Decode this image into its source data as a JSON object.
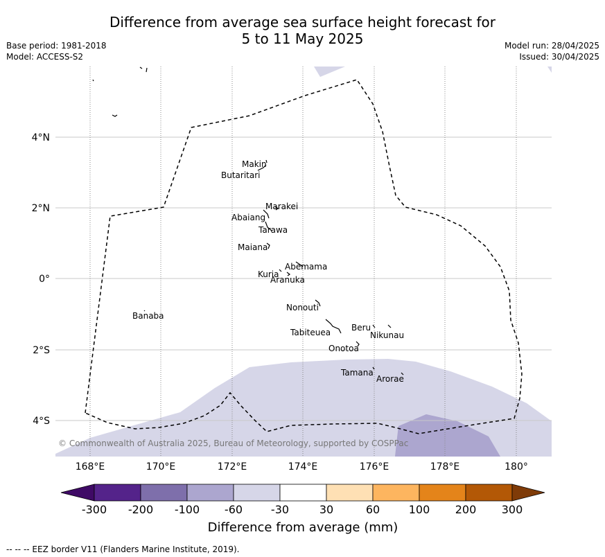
{
  "title_line1": "Difference from average sea surface height forecast for",
  "title_line2": "5 to 11 May 2025",
  "base_period": "Base period: 1981-2018",
  "model": "Model: ACCESS-S2",
  "model_run": "Model run: 28/04/2025",
  "issued": "Issued: 30/04/2025",
  "copyright": "© Commonwealth of Australia 2025, Bureau of Meteorology, supported by COSPPac",
  "lon_labels": [
    "168°E",
    "170°E",
    "172°E",
    "174°E",
    "176°E",
    "178°E",
    "180°"
  ],
  "lat_labels": [
    "4°N",
    "2°N",
    "0°",
    "2°S",
    "4°S"
  ],
  "places": {
    "makin": "Makin",
    "butaritari": "Butaritari",
    "marakei": "Marakei",
    "abaiang": "Abaiang",
    "tarawa": "Tarawa",
    "maiana": "Maiana",
    "abemama": "Abemama",
    "kuria": "Kuria",
    "aranuka": "Aranuka",
    "nonouti": "Nonouti",
    "banaba": "Banaba",
    "tabiteuea": "Tabiteuea",
    "beru": "Beru",
    "nikunau": "Nikunau",
    "onotoa": "Onotoa",
    "tamana": "Tamana",
    "arorae": "Arorae"
  },
  "colorbar": {
    "ticks": [
      "-300",
      "-200",
      "-100",
      "-60",
      "-30",
      "30",
      "60",
      "100",
      "200",
      "300"
    ],
    "colors": [
      "#3f0a66",
      "#54238a",
      "#7e6fab",
      "#aca6cf",
      "#d6d6e8",
      "#ffffff",
      "#fee0b4",
      "#fdb55f",
      "#e4841a",
      "#b35806",
      "#7f3b08"
    ],
    "label": "Difference from average (mm)"
  },
  "footer": "--  --  -- EEZ border V11 (Flanders Marine Institute, 2019)."
}
